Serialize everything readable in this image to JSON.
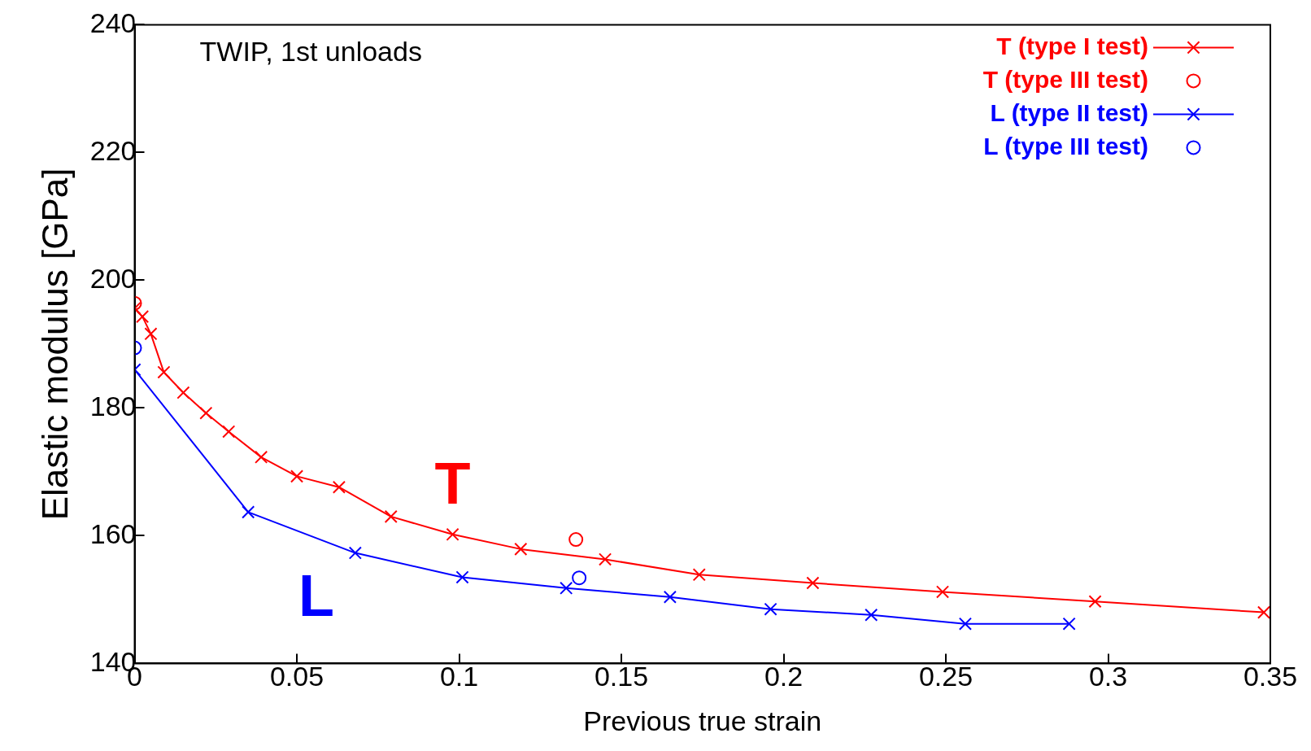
{
  "chart_data": {
    "type": "line",
    "xlabel": "Previous true strain",
    "ylabel": "Elastic modulus [GPa]",
    "xlim": [
      0,
      0.35
    ],
    "xticks": [
      0,
      0.05,
      0.1,
      0.15,
      0.2,
      0.25,
      0.3,
      0.35
    ],
    "ylim": [
      140,
      240
    ],
    "yticks": [
      140,
      160,
      180,
      200,
      220,
      240
    ],
    "legend": "top right",
    "grid": false,
    "series": [
      {
        "name": "T (type I test)",
        "marker": "cross",
        "color": "#ff0000",
        "x": [
          0,
          0.0024,
          0.005,
          0.009,
          0.015,
          0.022,
          0.029,
          0.039,
          0.05,
          0.063,
          0.079,
          0.098,
          0.119,
          0.145,
          0.174,
          0.209,
          0.249,
          0.296,
          0.348
        ],
        "values": [
          195.6,
          194.3,
          191.6,
          185.6,
          182.4,
          179.2,
          176.3,
          172.3,
          169.3,
          167.6,
          163,
          160.2,
          157.9,
          156.3,
          153.9,
          152.6,
          151.2,
          149.7,
          148
        ]
      },
      {
        "name": "T (type III test)",
        "type": "scatter",
        "marker": "circle",
        "color": "#ff0000",
        "x": [
          0,
          0.136
        ],
        "values": [
          196.4,
          159.4
        ]
      },
      {
        "name": "L (type II test)",
        "marker": "cross",
        "color": "#0000ff",
        "x": [
          0,
          0.035,
          0.068,
          0.101,
          0.133,
          0.165,
          0.196,
          0.227,
          0.256,
          0.288
        ],
        "values": [
          186,
          163.7,
          157.3,
          153.5,
          151.8,
          150.4,
          148.5,
          147.6,
          146.2,
          146.2
        ]
      },
      {
        "name": "L (type III test)",
        "type": "scatter",
        "marker": "circle",
        "color": "#0000ff",
        "x": [
          0,
          0.137
        ],
        "values": [
          189.4,
          153.4
        ]
      }
    ],
    "annotations": [
      "TWIP, 1st unloads",
      "T",
      "L"
    ]
  }
}
